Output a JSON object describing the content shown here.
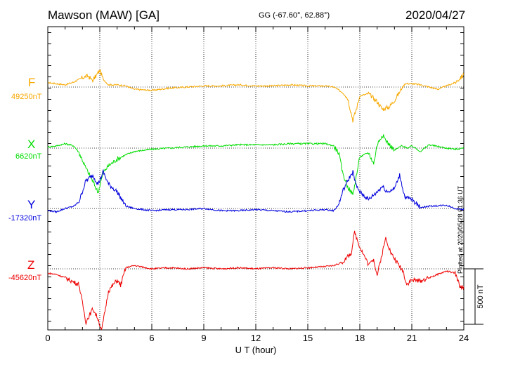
{
  "header": {
    "station": "Mawson (MAW)  [GA]",
    "coords": "GG (-67.60°,  62.88°)",
    "date": "2020/04/27"
  },
  "plotted_note": "Plotted at 2020/05/28 01:36 UT",
  "colors": {
    "F": "#f7a800",
    "X": "#00dd00",
    "Y": "#0000dd",
    "Z": "#ee0000"
  },
  "chart_data": {
    "type": "line",
    "xlabel": "U T (hour)",
    "xlim": [
      0,
      24
    ],
    "xticks": [
      "0",
      "3",
      "6",
      "9",
      "12",
      "15",
      "18",
      "21",
      "24"
    ],
    "scale_bar": {
      "label": "500 nT",
      "value_nT": 500
    },
    "components": [
      {
        "name": "F",
        "baseline_label": "49250nT",
        "baseline_nT": 49250
      },
      {
        "name": "X",
        "baseline_label": "6620nT",
        "baseline_nT": 6620
      },
      {
        "name": "Y",
        "baseline_label": "-17320nT",
        "baseline_nT": -17320
      },
      {
        "name": "Z",
        "baseline_label": "-45620nT",
        "baseline_nT": -45620
      }
    ],
    "series": [
      {
        "name": "F",
        "unit": "nT, deviation from baseline",
        "points": [
          [
            0,
            40
          ],
          [
            0.5,
            30
          ],
          [
            1,
            20
          ],
          [
            1.5,
            45
          ],
          [
            2,
            85
          ],
          [
            2.3,
            100
          ],
          [
            2.6,
            60
          ],
          [
            3,
            150
          ],
          [
            3.2,
            70
          ],
          [
            3.5,
            20
          ],
          [
            4,
            20
          ],
          [
            4.5,
            10
          ],
          [
            5,
            -20
          ],
          [
            6,
            -30
          ],
          [
            7,
            -10
          ],
          [
            8,
            0
          ],
          [
            9,
            10
          ],
          [
            10,
            10
          ],
          [
            11,
            20
          ],
          [
            12,
            10
          ],
          [
            13,
            10
          ],
          [
            14,
            20
          ],
          [
            15,
            10
          ],
          [
            16,
            10
          ],
          [
            16.5,
            0
          ],
          [
            17,
            -50
          ],
          [
            17.3,
            -100
          ],
          [
            17.6,
            -300
          ],
          [
            17.8,
            -200
          ],
          [
            18,
            -80
          ],
          [
            18.5,
            -60
          ],
          [
            19,
            -130
          ],
          [
            19.3,
            -200
          ],
          [
            19.7,
            -180
          ],
          [
            20,
            -120
          ],
          [
            20.4,
            -20
          ],
          [
            20.6,
            30
          ],
          [
            21,
            30
          ],
          [
            21.5,
            20
          ],
          [
            22,
            0
          ],
          [
            22.5,
            -20
          ],
          [
            23,
            10
          ],
          [
            23.5,
            40
          ],
          [
            24,
            110
          ]
        ]
      },
      {
        "name": "X",
        "unit": "nT, deviation from baseline",
        "points": [
          [
            0,
            10
          ],
          [
            0.5,
            20
          ],
          [
            1,
            40
          ],
          [
            1.5,
            20
          ],
          [
            1.8,
            -40
          ],
          [
            2.2,
            -180
          ],
          [
            2.6,
            -300
          ],
          [
            2.9,
            -400
          ],
          [
            3.2,
            -220
          ],
          [
            3.5,
            -160
          ],
          [
            4,
            -100
          ],
          [
            4.5,
            -60
          ],
          [
            5,
            -30
          ],
          [
            6,
            -10
          ],
          [
            7,
            0
          ],
          [
            8,
            10
          ],
          [
            9,
            20
          ],
          [
            10,
            20
          ],
          [
            11,
            30
          ],
          [
            12,
            30
          ],
          [
            13,
            30
          ],
          [
            14,
            40
          ],
          [
            15,
            40
          ],
          [
            16,
            40
          ],
          [
            16.5,
            20
          ],
          [
            16.8,
            -50
          ],
          [
            17,
            -220
          ],
          [
            17.3,
            -350
          ],
          [
            17.6,
            -420
          ],
          [
            17.8,
            -250
          ],
          [
            18,
            -80
          ],
          [
            18.5,
            -40
          ],
          [
            18.8,
            -140
          ],
          [
            19,
            30
          ],
          [
            19.3,
            120
          ],
          [
            19.6,
            50
          ],
          [
            20,
            -20
          ],
          [
            20.4,
            20
          ],
          [
            20.8,
            0
          ],
          [
            21,
            20
          ],
          [
            21.5,
            -30
          ],
          [
            22,
            30
          ],
          [
            23,
            0
          ],
          [
            23.5,
            -10
          ],
          [
            24,
            0
          ]
        ]
      },
      {
        "name": "Y",
        "unit": "nT, deviation from baseline",
        "points": [
          [
            0,
            -20
          ],
          [
            0.5,
            -30
          ],
          [
            1,
            0
          ],
          [
            1.5,
            20
          ],
          [
            1.8,
            60
          ],
          [
            2.2,
            250
          ],
          [
            2.6,
            300
          ],
          [
            2.9,
            220
          ],
          [
            3.2,
            330
          ],
          [
            3.5,
            220
          ],
          [
            4,
            150
          ],
          [
            4.5,
            20
          ],
          [
            5,
            0
          ],
          [
            6,
            -20
          ],
          [
            7,
            -10
          ],
          [
            8,
            -10
          ],
          [
            9,
            0
          ],
          [
            10,
            -20
          ],
          [
            11,
            -20
          ],
          [
            12,
            -10
          ],
          [
            13,
            -20
          ],
          [
            14,
            -30
          ],
          [
            15,
            -20
          ],
          [
            16,
            -10
          ],
          [
            16.5,
            -20
          ],
          [
            16.8,
            40
          ],
          [
            17,
            150
          ],
          [
            17.3,
            250
          ],
          [
            17.6,
            330
          ],
          [
            17.8,
            200
          ],
          [
            18,
            150
          ],
          [
            18.5,
            80
          ],
          [
            19,
            150
          ],
          [
            19.3,
            200
          ],
          [
            19.6,
            150
          ],
          [
            20,
            180
          ],
          [
            20.3,
            300
          ],
          [
            20.6,
            100
          ],
          [
            21,
            80
          ],
          [
            21.5,
            10
          ],
          [
            22,
            20
          ],
          [
            23,
            30
          ],
          [
            23.5,
            0
          ],
          [
            24,
            -10
          ]
        ]
      },
      {
        "name": "Z",
        "unit": "nT, deviation from baseline",
        "points": [
          [
            0,
            -40
          ],
          [
            0.5,
            -50
          ],
          [
            1,
            -80
          ],
          [
            1.5,
            -120
          ],
          [
            1.8,
            -140
          ],
          [
            2.2,
            -480
          ],
          [
            2.6,
            -360
          ],
          [
            2.9,
            -450
          ],
          [
            3.1,
            -560
          ],
          [
            3.5,
            -200
          ],
          [
            4,
            -100
          ],
          [
            4.2,
            -150
          ],
          [
            4.5,
            10
          ],
          [
            5,
            30
          ],
          [
            6,
            0
          ],
          [
            7,
            10
          ],
          [
            8,
            0
          ],
          [
            9,
            10
          ],
          [
            10,
            0
          ],
          [
            11,
            10
          ],
          [
            12,
            0
          ],
          [
            13,
            10
          ],
          [
            14,
            0
          ],
          [
            15,
            10
          ],
          [
            16,
            20
          ],
          [
            16.5,
            30
          ],
          [
            17,
            60
          ],
          [
            17.5,
            140
          ],
          [
            17.7,
            330
          ],
          [
            18,
            200
          ],
          [
            18.5,
            40
          ],
          [
            18.8,
            90
          ],
          [
            19,
            -60
          ],
          [
            19.5,
            280
          ],
          [
            19.8,
            140
          ],
          [
            20,
            90
          ],
          [
            20.5,
            -20
          ],
          [
            20.7,
            -140
          ],
          [
            21,
            -100
          ],
          [
            21.5,
            -110
          ],
          [
            22,
            -80
          ],
          [
            23,
            -20
          ],
          [
            23.5,
            -40
          ],
          [
            23.8,
            -170
          ],
          [
            24,
            -160
          ]
        ]
      }
    ]
  }
}
